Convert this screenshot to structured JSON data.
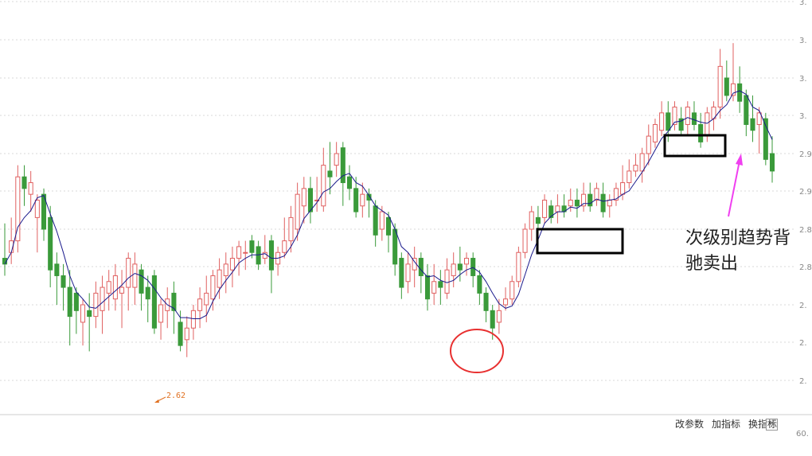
{
  "colors": {
    "up": "#e06060",
    "down": "#3a9a3a",
    "ma": "#1a1a8c",
    "grid": "#d8d8d8",
    "box": "#000000",
    "circle": "#e83030",
    "arrow": "#f040f0",
    "low_label": "#e07020"
  },
  "annotation": {
    "line1": "次级别趋势背",
    "line2": "驰卖出"
  },
  "low_marker": "2.62",
  "toolbar": {
    "edit_params": "改参数",
    "add_indicator": "加指标",
    "switch_indicator": "换指标",
    "close": "✕"
  },
  "volume_axis_label": "60.",
  "chart_data": {
    "type": "candlestick",
    "yaxis_ticks": [
      "3.",
      "3.",
      "3.",
      "3.",
      "2.9",
      "2.9",
      "2.8",
      "2.8",
      "2.",
      "2.",
      "2."
    ],
    "ma_line": true,
    "candles": [
      [
        2.79,
        2.78,
        2.85,
        2.76
      ],
      [
        2.8,
        2.82,
        2.86,
        2.78
      ],
      [
        2.82,
        2.93,
        2.95,
        2.8
      ],
      [
        2.93,
        2.91,
        2.95,
        2.88
      ],
      [
        2.9,
        2.92,
        2.94,
        2.87
      ],
      [
        2.86,
        2.89,
        2.9,
        2.8
      ],
      [
        2.9,
        2.84,
        2.91,
        2.82
      ],
      [
        2.86,
        2.77,
        2.88,
        2.74
      ],
      [
        2.78,
        2.76,
        2.8,
        2.71
      ],
      [
        2.76,
        2.74,
        2.78,
        2.7
      ],
      [
        2.74,
        2.69,
        2.77,
        2.64
      ],
      [
        2.73,
        2.7,
        2.74,
        2.66
      ],
      [
        2.68,
        2.71,
        2.72,
        2.64
      ],
      [
        2.7,
        2.69,
        2.73,
        2.63
      ],
      [
        2.69,
        2.73,
        2.75,
        2.67
      ],
      [
        2.7,
        2.74,
        2.76,
        2.66
      ],
      [
        2.73,
        2.75,
        2.77,
        2.7
      ],
      [
        2.72,
        2.76,
        2.78,
        2.7
      ],
      [
        2.73,
        2.74,
        2.77,
        2.67
      ],
      [
        2.74,
        2.79,
        2.8,
        2.7
      ],
      [
        2.74,
        2.78,
        2.8,
        2.71
      ],
      [
        2.77,
        2.73,
        2.78,
        2.7
      ],
      [
        2.74,
        2.72,
        2.76,
        2.68
      ],
      [
        2.76,
        2.67,
        2.77,
        2.66
      ],
      [
        2.68,
        2.71,
        2.72,
        2.65
      ],
      [
        2.7,
        2.72,
        2.74,
        2.67
      ],
      [
        2.73,
        2.7,
        2.75,
        2.66
      ],
      [
        2.68,
        2.64,
        2.7,
        2.63
      ],
      [
        2.65,
        2.67,
        2.69,
        2.62
      ],
      [
        2.67,
        2.7,
        2.71,
        2.65
      ],
      [
        2.7,
        2.72,
        2.74,
        2.67
      ],
      [
        2.71,
        2.73,
        2.76,
        2.68
      ],
      [
        2.72,
        2.76,
        2.77,
        2.7
      ],
      [
        2.74,
        2.77,
        2.79,
        2.72
      ],
      [
        2.76,
        2.78,
        2.8,
        2.73
      ],
      [
        2.77,
        2.79,
        2.81,
        2.74
      ],
      [
        2.79,
        2.81,
        2.82,
        2.76
      ],
      [
        2.8,
        2.8,
        2.82,
        2.77
      ],
      [
        2.82,
        2.8,
        2.83,
        2.79
      ],
      [
        2.81,
        2.78,
        2.82,
        2.77
      ],
      [
        2.79,
        2.8,
        2.83,
        2.78
      ],
      [
        2.82,
        2.77,
        2.83,
        2.73
      ],
      [
        2.78,
        2.8,
        2.81,
        2.76
      ],
      [
        2.8,
        2.82,
        2.86,
        2.79
      ],
      [
        2.82,
        2.86,
        2.88,
        2.8
      ],
      [
        2.84,
        2.9,
        2.92,
        2.82
      ],
      [
        2.88,
        2.91,
        2.93,
        2.85
      ],
      [
        2.91,
        2.87,
        2.93,
        2.85
      ],
      [
        2.89,
        2.89,
        2.93,
        2.87
      ],
      [
        2.88,
        2.95,
        2.98,
        2.87
      ],
      [
        2.94,
        2.93,
        2.99,
        2.9
      ],
      [
        2.95,
        2.97,
        2.99,
        2.93
      ],
      [
        2.98,
        2.92,
        2.99,
        2.88
      ],
      [
        2.93,
        2.91,
        2.95,
        2.89
      ],
      [
        2.91,
        2.87,
        2.93,
        2.86
      ],
      [
        2.88,
        2.9,
        2.92,
        2.86
      ],
      [
        2.9,
        2.89,
        2.91,
        2.86
      ],
      [
        2.88,
        2.83,
        2.89,
        2.81
      ],
      [
        2.84,
        2.87,
        2.88,
        2.82
      ],
      [
        2.86,
        2.83,
        2.87,
        2.8
      ],
      [
        2.84,
        2.78,
        2.85,
        2.76
      ],
      [
        2.79,
        2.74,
        2.8,
        2.72
      ],
      [
        2.75,
        2.78,
        2.8,
        2.73
      ],
      [
        2.77,
        2.79,
        2.81,
        2.74
      ],
      [
        2.79,
        2.76,
        2.8,
        2.73
      ],
      [
        2.76,
        2.72,
        2.78,
        2.7
      ],
      [
        2.73,
        2.75,
        2.78,
        2.71
      ],
      [
        2.75,
        2.74,
        2.77,
        2.71
      ],
      [
        2.73,
        2.77,
        2.79,
        2.72
      ],
      [
        2.76,
        2.78,
        2.8,
        2.74
      ],
      [
        2.78,
        2.77,
        2.81,
        2.75
      ],
      [
        2.78,
        2.79,
        2.8,
        2.76
      ],
      [
        2.79,
        2.76,
        2.8,
        2.74
      ],
      [
        2.76,
        2.73,
        2.77,
        2.71
      ],
      [
        2.73,
        2.7,
        2.74,
        2.68
      ],
      [
        2.7,
        2.67,
        2.71,
        2.65
      ],
      [
        2.68,
        2.7,
        2.72,
        2.66
      ],
      [
        2.71,
        2.72,
        2.74,
        2.7
      ],
      [
        2.72,
        2.75,
        2.76,
        2.71
      ],
      [
        2.75,
        2.8,
        2.81,
        2.74
      ],
      [
        2.8,
        2.84,
        2.85,
        2.79
      ],
      [
        2.84,
        2.87,
        2.88,
        2.82
      ],
      [
        2.86,
        2.85,
        2.88,
        2.84
      ],
      [
        2.86,
        2.89,
        2.9,
        2.85
      ],
      [
        2.88,
        2.86,
        2.89,
        2.85
      ],
      [
        2.87,
        2.88,
        2.9,
        2.85
      ],
      [
        2.88,
        2.87,
        2.9,
        2.86
      ],
      [
        2.88,
        2.89,
        2.91,
        2.87
      ],
      [
        2.89,
        2.88,
        2.91,
        2.86
      ],
      [
        2.88,
        2.9,
        2.92,
        2.87
      ],
      [
        2.9,
        2.88,
        2.92,
        2.87
      ],
      [
        2.89,
        2.91,
        2.92,
        2.88
      ],
      [
        2.9,
        2.87,
        2.92,
        2.86
      ],
      [
        2.88,
        2.89,
        2.9,
        2.86
      ],
      [
        2.89,
        2.91,
        2.92,
        2.88
      ],
      [
        2.9,
        2.92,
        2.95,
        2.89
      ],
      [
        2.92,
        2.94,
        2.96,
        2.91
      ],
      [
        2.94,
        2.95,
        2.97,
        2.93
      ],
      [
        2.94,
        2.97,
        2.98,
        2.92
      ],
      [
        2.97,
        3.0,
        3.02,
        2.95
      ],
      [
        2.99,
        3.02,
        3.03,
        2.98
      ],
      [
        3.01,
        3.04,
        3.06,
        3.0
      ],
      [
        3.04,
        3.01,
        3.06,
        2.99
      ],
      [
        3.02,
        3.05,
        3.06,
        3.01
      ],
      [
        3.03,
        3.01,
        3.05,
        3.0
      ],
      [
        3.02,
        3.05,
        3.06,
        3.0
      ],
      [
        3.04,
        3.02,
        3.06,
        3.01
      ],
      [
        3.02,
        2.99,
        3.04,
        2.98
      ],
      [
        3.0,
        3.04,
        3.05,
        2.99
      ],
      [
        3.03,
        3.05,
        3.06,
        3.01
      ],
      [
        3.05,
        3.12,
        3.15,
        3.03
      ],
      [
        3.1,
        3.07,
        3.13,
        3.06
      ],
      [
        3.07,
        3.09,
        3.16,
        3.06
      ],
      [
        3.09,
        3.06,
        3.12,
        3.04
      ],
      [
        3.07,
        3.02,
        3.08,
        3.0
      ],
      [
        3.03,
        3.01,
        3.07,
        2.99
      ],
      [
        3.02,
        3.04,
        3.05,
        2.97
      ],
      [
        3.03,
        2.96,
        3.04,
        2.95
      ],
      [
        2.97,
        2.94,
        3.0,
        2.92
      ]
    ]
  }
}
